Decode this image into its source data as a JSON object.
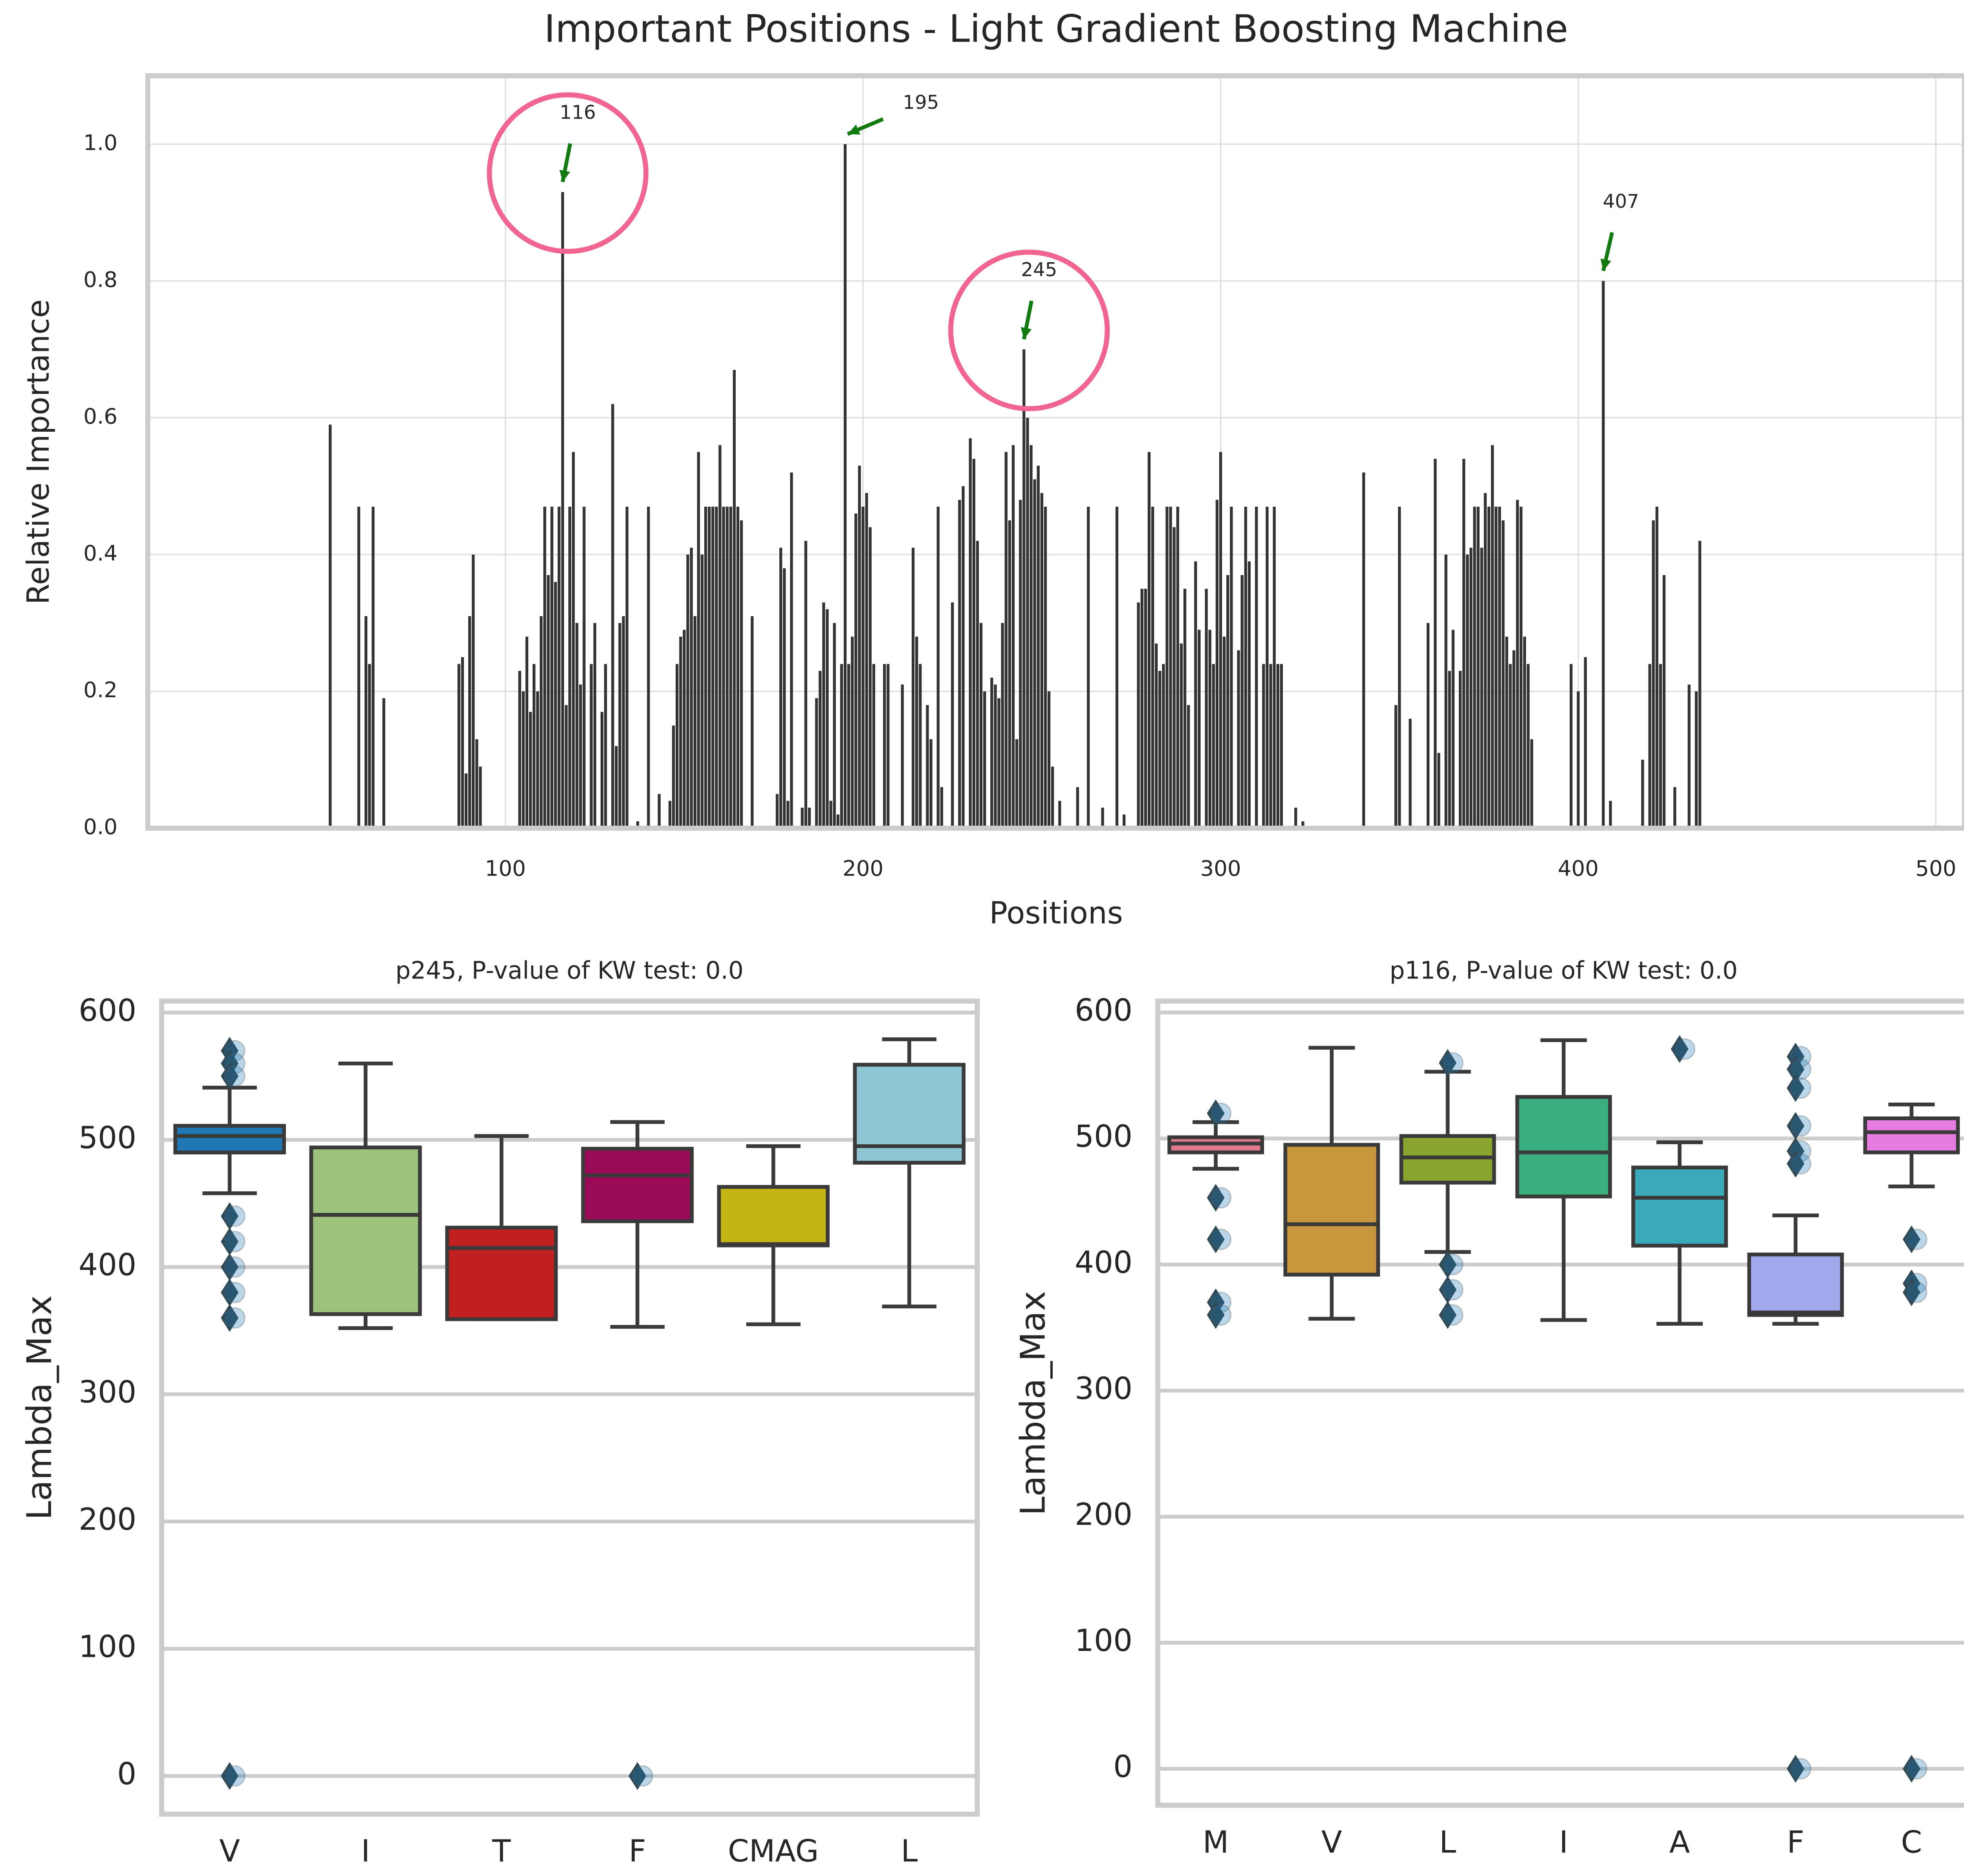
{
  "chart_data": [
    {
      "type": "bar",
      "title": "Important Positions - Light Gradient Boosting Machine",
      "x_label": "Positions",
      "y_label": "Relative Importance",
      "color": "#333333",
      "grid": true,
      "xlim": [
        0,
        508
      ],
      "ylim": [
        0,
        1.1
      ],
      "xticks": [
        100,
        200,
        300,
        400,
        500
      ],
      "yticks": [
        {
          "value": 0,
          "label": "0.0"
        },
        0.2,
        0.4,
        0.6,
        0.8,
        {
          "value": 1,
          "label": "1.0"
        }
      ],
      "x": [
        51,
        59,
        61,
        62,
        63,
        66,
        87,
        88,
        89,
        90,
        91,
        92,
        93,
        104,
        105,
        106,
        107,
        108,
        109,
        110,
        111,
        112,
        113,
        114,
        115,
        116,
        117,
        118,
        119,
        120,
        121,
        122,
        124,
        125,
        127,
        128,
        130,
        131,
        132,
        133,
        134,
        137,
        140,
        143,
        146,
        147,
        148,
        149,
        150,
        151,
        152,
        153,
        154,
        155,
        156,
        157,
        158,
        159,
        160,
        161,
        162,
        163,
        164,
        165,
        166,
        169,
        176,
        177,
        178,
        179,
        180,
        183,
        184,
        185,
        187,
        188,
        189,
        190,
        191,
        192,
        193,
        194,
        195,
        196,
        197,
        198,
        199,
        200,
        201,
        202,
        203,
        206,
        207,
        211,
        214,
        215,
        216,
        218,
        219,
        221,
        222,
        225,
        227,
        228,
        230,
        231,
        232,
        233,
        234,
        236,
        237,
        238,
        239,
        240,
        241,
        242,
        243,
        244,
        245,
        246,
        247,
        248,
        249,
        250,
        251,
        252,
        253,
        255,
        260,
        263,
        267,
        271,
        273,
        277,
        278,
        279,
        280,
        281,
        282,
        283,
        284,
        285,
        286,
        287,
        288,
        289,
        290,
        291,
        293,
        294,
        296,
        297,
        298,
        299,
        300,
        301,
        302,
        303,
        305,
        306,
        307,
        308,
        310,
        312,
        313,
        314,
        315,
        316,
        317,
        321,
        323,
        340,
        349,
        350,
        353,
        358,
        360,
        361,
        363,
        364,
        365,
        367,
        368,
        369,
        370,
        371,
        372,
        373,
        374,
        375,
        376,
        377,
        378,
        379,
        380,
        381,
        382,
        383,
        384,
        385,
        386,
        387,
        398,
        400,
        402,
        407,
        409,
        418,
        420,
        421,
        422,
        423,
        424,
        427,
        431,
        433,
        434
      ],
      "values": [
        0.59,
        0.47,
        0.31,
        0.24,
        0.47,
        0.19,
        0.24,
        0.25,
        0.08,
        0.31,
        0.4,
        0.13,
        0.09,
        0.23,
        0.2,
        0.28,
        0.17,
        0.24,
        0.2,
        0.31,
        0.47,
        0.37,
        0.47,
        0.36,
        0.47,
        0.93,
        0.18,
        0.47,
        0.55,
        0.3,
        0.21,
        0.47,
        0.24,
        0.3,
        0.17,
        0.24,
        0.62,
        0.12,
        0.3,
        0.31,
        0.47,
        0.01,
        0.47,
        0.05,
        0.04,
        0.15,
        0.24,
        0.28,
        0.29,
        0.4,
        0.41,
        0.31,
        0.55,
        0.4,
        0.47,
        0.47,
        0.47,
        0.47,
        0.56,
        0.47,
        0.47,
        0.47,
        0.67,
        0.47,
        0.45,
        0.31,
        0.05,
        0.41,
        0.38,
        0.04,
        0.52,
        0.03,
        0.42,
        0.03,
        0.19,
        0.23,
        0.33,
        0.32,
        0.04,
        0.3,
        0.02,
        0.24,
        1.0,
        0.24,
        0.28,
        0.46,
        0.53,
        0.47,
        0.49,
        0.44,
        0.24,
        0.24,
        0.24,
        0.21,
        0.41,
        0.28,
        0.24,
        0.18,
        0.13,
        0.47,
        0.06,
        0.33,
        0.48,
        0.5,
        0.57,
        0.54,
        0.42,
        0.3,
        0.2,
        0.22,
        0.21,
        0.19,
        0.3,
        0.55,
        0.45,
        0.56,
        0.13,
        0.48,
        0.7,
        0.6,
        0.56,
        0.51,
        0.53,
        0.49,
        0.47,
        0.2,
        0.09,
        0.04,
        0.06,
        0.47,
        0.03,
        0.47,
        0.02,
        0.33,
        0.35,
        0.35,
        0.55,
        0.47,
        0.27,
        0.23,
        0.24,
        0.47,
        0.47,
        0.44,
        0.47,
        0.27,
        0.35,
        0.18,
        0.39,
        0.29,
        0.35,
        0.29,
        0.24,
        0.48,
        0.55,
        0.28,
        0.37,
        0.47,
        0.26,
        0.37,
        0.47,
        0.39,
        0.47,
        0.24,
        0.47,
        0.24,
        0.47,
        0.24,
        0.24,
        0.03,
        0.01,
        0.52,
        0.18,
        0.47,
        0.16,
        0.3,
        0.54,
        0.11,
        0.4,
        0.23,
        0.29,
        0.23,
        0.54,
        0.4,
        0.41,
        0.47,
        0.47,
        0.41,
        0.49,
        0.47,
        0.56,
        0.47,
        0.47,
        0.45,
        0.28,
        0.24,
        0.26,
        0.48,
        0.47,
        0.28,
        0.24,
        0.13,
        0.24,
        0.2,
        0.25,
        0.8,
        0.04,
        0.1,
        0.24,
        0.45,
        0.47,
        0.24,
        0.37,
        0.06,
        0.21,
        0.2,
        0.42
      ],
      "annotations": [
        {
          "text": "116",
          "x": 116,
          "y": 0.93,
          "highlighted": true
        },
        {
          "text": "195",
          "x": 195,
          "y": 1.0,
          "highlighted": false
        },
        {
          "text": "245",
          "x": 245,
          "y": 0.7,
          "highlighted": true
        },
        {
          "text": "407",
          "x": 407,
          "y": 0.8,
          "highlighted": false
        }
      ],
      "arrow_color": "#117a11",
      "highlight_color": "#f06690"
    },
    {
      "type": "box",
      "title": "p245, P-value of KW test: 0.0",
      "y_label": "Lambda_Max",
      "grid": true,
      "ylim": [
        -30,
        609
      ],
      "yticks": [
        0,
        100,
        200,
        300,
        400,
        500,
        600
      ],
      "categories": [
        "V",
        "I",
        "T",
        "F",
        "CMAG",
        "L"
      ],
      "colors": [
        "#1f77b4",
        "#9cc27b",
        "#c0201f",
        "#9a0a57",
        "#c4b414",
        "#8fc6d4"
      ],
      "boxes": [
        {
          "whislo": 458,
          "q1": 490,
          "med": 503,
          "q3": 511,
          "whishi": 541,
          "fliers": [
            570,
            560,
            550,
            440,
            420,
            400,
            380,
            360,
            0
          ]
        },
        {
          "whislo": 352,
          "q1": 363,
          "med": 441,
          "q3": 494,
          "whishi": 560,
          "fliers": []
        },
        {
          "whislo": 359,
          "q1": 359,
          "med": 415,
          "q3": 431,
          "whishi": 503,
          "fliers": []
        },
        {
          "whislo": 353,
          "q1": 436,
          "med": 472,
          "q3": 493,
          "whishi": 514,
          "fliers": [
            0
          ]
        },
        {
          "whislo": 355,
          "q1": 417,
          "med": 418,
          "q3": 463,
          "whishi": 495,
          "fliers": []
        },
        {
          "whislo": 369,
          "q1": 482,
          "med": 495,
          "q3": 559,
          "whishi": 579,
          "fliers": []
        }
      ]
    },
    {
      "type": "box",
      "title": "p116, P-value of KW test: 0.0",
      "y_label": "Lambda_Max",
      "grid": true,
      "ylim": [
        -29,
        609
      ],
      "yticks": [
        0,
        100,
        200,
        300,
        400,
        500,
        600
      ],
      "categories": [
        "M",
        "V",
        "L",
        "I",
        "A",
        "F",
        "C"
      ],
      "colors": [
        "#e07a8c",
        "#c8963c",
        "#8aa52f",
        "#3aae7f",
        "#3aa9b8",
        "#a2a8ec",
        "#e67be0"
      ],
      "boxes": [
        {
          "whislo": 476,
          "q1": 489,
          "med": 496,
          "q3": 501,
          "whishi": 513,
          "fliers": [
            520,
            453,
            420,
            370,
            360
          ]
        },
        {
          "whislo": 357,
          "q1": 392,
          "med": 432,
          "q3": 495,
          "whishi": 572,
          "fliers": []
        },
        {
          "whislo": 410,
          "q1": 465,
          "med": 485,
          "q3": 502,
          "whishi": 553,
          "fliers": [
            560,
            400,
            380,
            360
          ]
        },
        {
          "whislo": 356,
          "q1": 454,
          "med": 489,
          "q3": 533,
          "whishi": 578,
          "fliers": []
        },
        {
          "whislo": 353,
          "q1": 415,
          "med": 453,
          "q3": 477,
          "whishi": 497,
          "fliers": [
            571
          ]
        },
        {
          "whislo": 353,
          "q1": 360,
          "med": 362,
          "q3": 408,
          "whishi": 439,
          "fliers": [
            565,
            555,
            540,
            510,
            490,
            480,
            0
          ]
        },
        {
          "whislo": 462,
          "q1": 489,
          "med": 505,
          "q3": 516,
          "whishi": 527,
          "fliers": [
            420,
            385,
            378,
            0
          ]
        }
      ]
    }
  ]
}
